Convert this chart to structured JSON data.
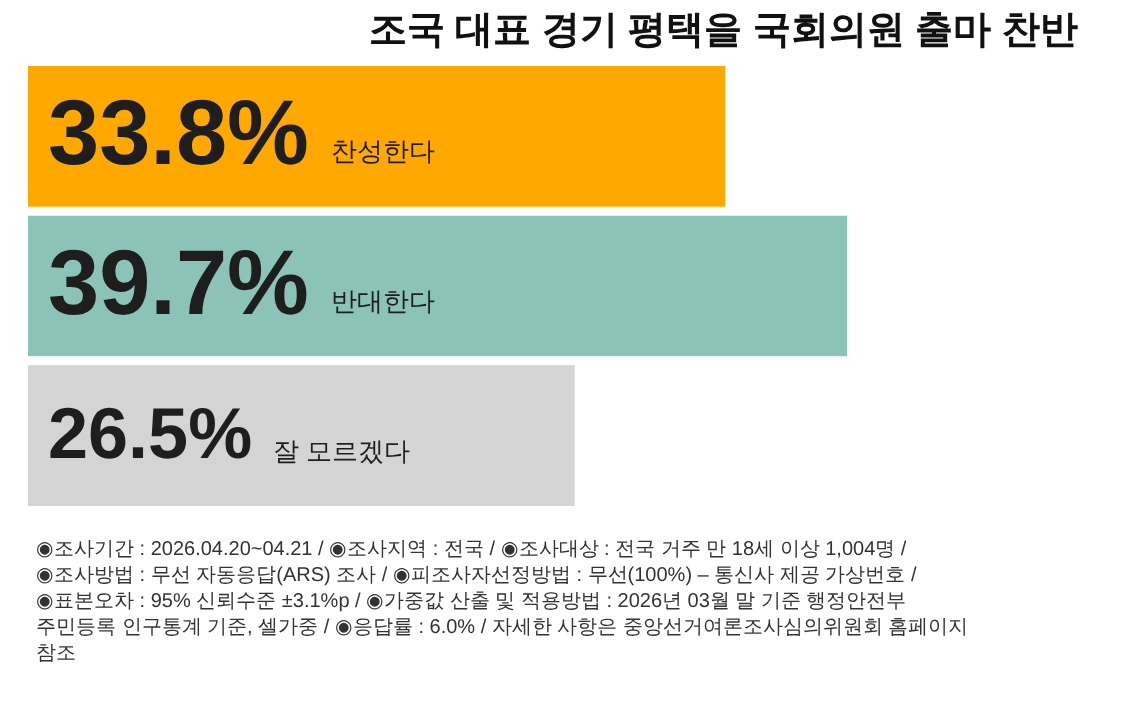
{
  "chart_data": {
    "type": "bar",
    "orientation": "horizontal",
    "title": "조국 대표 경기 평택을 국회의원 출마 찬반",
    "categories": [
      "찬성한다",
      "반대한다",
      "잘 모르겠다"
    ],
    "values": [
      33.8,
      39.7,
      26.5
    ],
    "value_labels": [
      "33.8%",
      "39.7%",
      "26.5%"
    ],
    "colors": [
      "#ffa800",
      "#8cc3b9",
      "#d4d4d4"
    ],
    "annotations": [
      "◉조사기간 : 2026.04.20~04.21 / ◉조사지역 : 전국 / ◉조사대상 : 전국 거주 만 18세 이상 1,004명 / ◉조사방법 : 무선 자동응답(ARS) 조사 / ◉피조사자선정방법 : 무선(100%) – 통신사 제공 가상번호 / ◉표본오차 : 95% 신뢰수준 ±3.1%p / ◉가중값 산출 및 적용방법 : 2026년 03월 말 기준 행정안전부 주민등록 인구통계 기준, 셀가중 / ◉응답률 : 6.0% / 자세한 사항은 중앙선거여론조사심의위원회 홈페이지 참조"
    ]
  }
}
